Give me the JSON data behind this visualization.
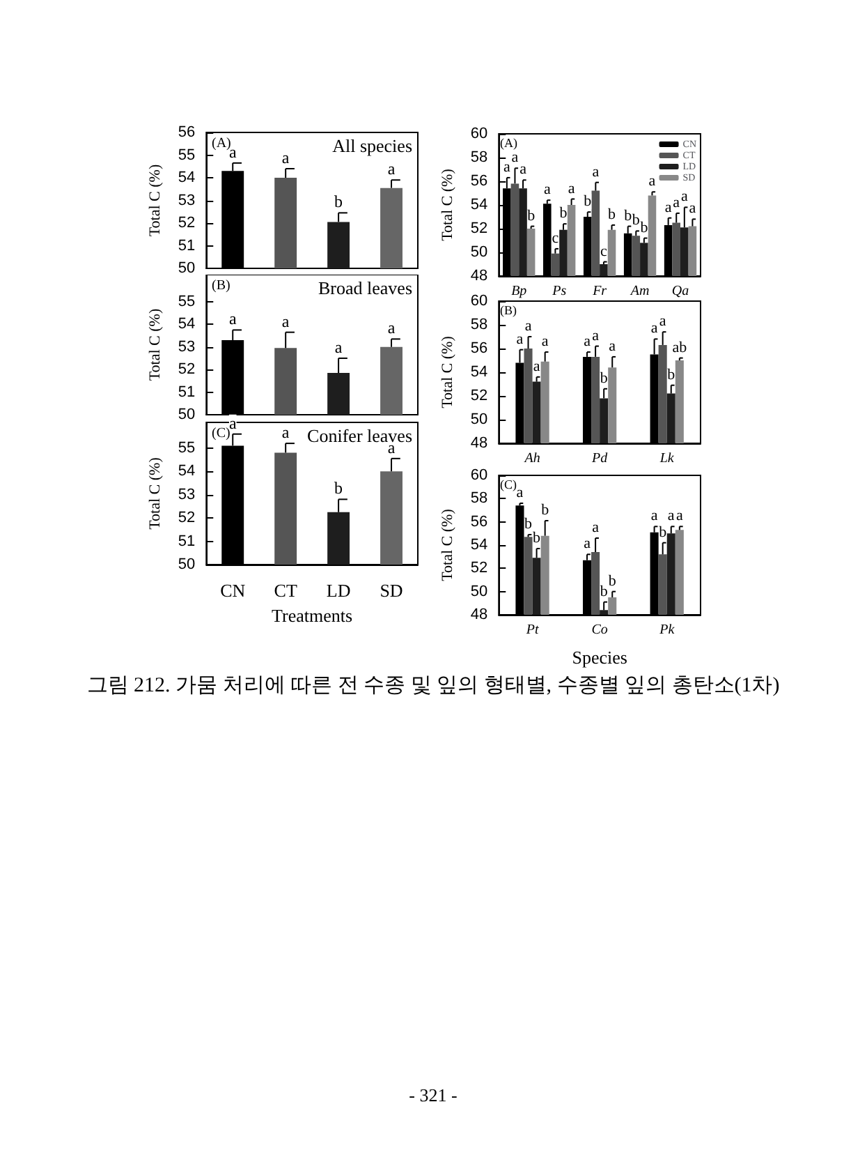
{
  "chart_data": [
    {
      "type": "bar",
      "ylabel": "Total C (%)",
      "annotations": [
        "(A)",
        "All species"
      ],
      "categories": [
        null,
        null,
        null,
        null
      ],
      "ylim": [
        50,
        56
      ],
      "yticks": [
        50,
        51,
        52,
        53,
        54,
        55,
        56
      ],
      "tick_labels": "y",
      "values": [
        54.3,
        54.0,
        52.05,
        53.55
      ],
      "colors": [
        "#000000",
        "#555555",
        "#1e1e1e",
        "#666666"
      ],
      "errors": [
        0.35,
        0.4,
        0.4,
        0.35
      ],
      "value_labels": [
        "a",
        "a",
        "b",
        "a"
      ]
    },
    {
      "type": "bar",
      "ylabel": "Total C (%)",
      "annotations": [
        "(B)",
        "Broad leaves"
      ],
      "categories": [
        null,
        null,
        null,
        null
      ],
      "ylim": [
        50,
        56.2
      ],
      "yticks": [
        50,
        51,
        52,
        53,
        54,
        55
      ],
      "tick_labels": "y",
      "values": [
        53.3,
        52.95,
        51.85,
        53.0
      ],
      "colors": [
        "#000000",
        "#555555",
        "#1e1e1e",
        "#666666"
      ],
      "errors": [
        0.45,
        0.7,
        0.65,
        0.35
      ],
      "value_labels": [
        "a",
        "a",
        "a",
        "a"
      ]
    },
    {
      "type": "bar",
      "ylabel": "Total C (%)",
      "xlabel": "Treatments",
      "annotations": [
        "(C)",
        "Conifer leaves"
      ],
      "categories": [
        "CN",
        "CT",
        "LD",
        "SD"
      ],
      "ylim": [
        50,
        56.1
      ],
      "yticks": [
        50,
        51,
        52,
        53,
        54,
        55
      ],
      "values": [
        55.1,
        54.8,
        52.25,
        54.0
      ],
      "colors": [
        "#000000",
        "#555555",
        "#1e1e1e",
        "#666666"
      ],
      "errors": [
        0.5,
        0.4,
        0.55,
        0.55
      ],
      "value_labels": [
        "a",
        "a",
        "b",
        "a"
      ]
    },
    {
      "type": "bar",
      "ylabel": "Total C (%)",
      "annotations": [
        "(A)"
      ],
      "categories": [
        "Bp",
        "Ps",
        "Fr",
        "Am",
        "Qa"
      ],
      "ylim": [
        48,
        60
      ],
      "yticks": [
        48,
        50,
        52,
        54,
        56,
        58,
        60
      ],
      "legend": "top right",
      "series": [
        {
          "name": "CN",
          "color": "#000000",
          "values": [
            55.4,
            54.1,
            53.0,
            51.6,
            52.3
          ],
          "errors": [
            0.9,
            0.3,
            0.4,
            0.6,
            0.6
          ],
          "value_labels": [
            "a",
            "a",
            "b",
            "b",
            "a"
          ]
        },
        {
          "name": "CT",
          "color": "#555555",
          "values": [
            55.8,
            49.9,
            55.2,
            51.4,
            52.5
          ],
          "errors": [
            1.3,
            0.4,
            0.7,
            0.4,
            0.8
          ],
          "value_labels": [
            "a",
            "c",
            "a",
            "b",
            "a"
          ]
        },
        {
          "name": "LD",
          "color": "#1e1e1e",
          "values": [
            55.4,
            51.9,
            49.0,
            50.8,
            52.1
          ],
          "errors": [
            0.7,
            0.5,
            0.2,
            0.4,
            1.7
          ],
          "value_labels": [
            "a",
            "b",
            "c",
            "b",
            "a"
          ]
        },
        {
          "name": "SD",
          "color": "#888888",
          "values": [
            52.0,
            54.0,
            51.9,
            54.8,
            52.2
          ],
          "errors": [
            0.2,
            0.5,
            0.4,
            0.3,
            0.6
          ],
          "value_labels": [
            "b",
            "a",
            "b",
            "a",
            "a"
          ]
        }
      ]
    },
    {
      "type": "bar",
      "ylabel": "Total C (%)",
      "annotations": [
        "(B)"
      ],
      "categories": [
        "Ah",
        "Pd",
        "Lk"
      ],
      "ylim": [
        48,
        60
      ],
      "yticks": [
        48,
        50,
        52,
        54,
        56,
        58,
        60
      ],
      "series": [
        {
          "color": "#000000",
          "values": [
            54.8,
            55.3,
            55.5
          ],
          "errors": [
            1.1,
            0.4,
            1.3
          ],
          "value_labels": [
            "a",
            "a",
            "a"
          ]
        },
        {
          "color": "#555555",
          "values": [
            56.0,
            55.3,
            56.3
          ],
          "errors": [
            1.0,
            0.9,
            1.1
          ],
          "value_labels": [
            "a",
            "a",
            "a"
          ]
        },
        {
          "color": "#1e1e1e",
          "values": [
            53.2,
            51.8,
            52.2
          ],
          "errors": [
            0.4,
            0.8,
            0.7
          ],
          "value_labels": [
            "a",
            "b",
            "b"
          ]
        },
        {
          "color": "#888888",
          "values": [
            54.9,
            54.4,
            55.0
          ],
          "errors": [
            0.8,
            0.9,
            0.2
          ],
          "value_labels": [
            "a",
            "a",
            "ab"
          ]
        }
      ]
    },
    {
      "type": "bar",
      "ylabel": "Total C (%)",
      "xlabel": "Species",
      "annotations": [
        "(C)"
      ],
      "categories": [
        "Pt",
        "Co",
        "Pk"
      ],
      "ylim": [
        48,
        60
      ],
      "yticks": [
        48,
        50,
        52,
        54,
        56,
        58,
        60
      ],
      "series": [
        {
          "color": "#000000",
          "values": [
            57.4,
            52.7,
            55.1
          ],
          "errors": [
            0.2,
            0.5,
            0.5
          ],
          "value_labels": [
            "a",
            "a",
            "a"
          ]
        },
        {
          "color": "#555555",
          "values": [
            54.7,
            53.4,
            53.2
          ],
          "errors": [
            0.2,
            1.2,
            1.0
          ],
          "value_labels": [
            "b",
            "a",
            "b"
          ]
        },
        {
          "color": "#1e1e1e",
          "values": [
            52.9,
            48.4,
            55.0
          ],
          "errors": [
            0.8,
            0.7,
            0.6
          ],
          "value_labels": [
            "b",
            "b",
            "a"
          ]
        },
        {
          "color": "#888888",
          "values": [
            54.8,
            49.5,
            55.3
          ],
          "errors": [
            1.3,
            0.5,
            0.3
          ],
          "value_labels": [
            "b",
            "b",
            "a"
          ]
        }
      ]
    },
    {
      "type": "other",
      "annotations": [
        "그림 212. 가뭄 처리에 따른 전 수종 및 잎의 형태별, 수종별 잎의 총탄소(1차)",
        "- 321 -"
      ]
    }
  ]
}
